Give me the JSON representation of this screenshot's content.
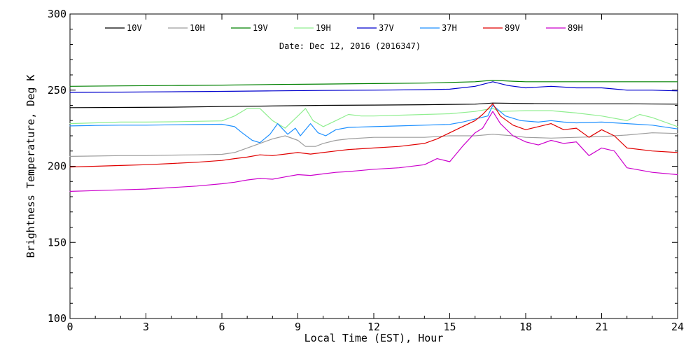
{
  "chart_data": {
    "type": "line",
    "title": "",
    "annotation": "Date: Dec 12, 2016 (2016347)",
    "xlabel": "Local Time (EST), Hour",
    "ylabel": "Brightness Temperature, Deg K",
    "xlim": [
      0,
      24
    ],
    "ylim": [
      100,
      300
    ],
    "xticks": [
      0,
      3,
      6,
      9,
      12,
      15,
      18,
      21,
      24
    ],
    "xtick_labels": [
      "0",
      "3",
      "6",
      "9",
      "12",
      "15",
      "18",
      "21",
      "24"
    ],
    "yticks": [
      100,
      150,
      200,
      250,
      300
    ],
    "ytick_labels": [
      "100",
      "150",
      "200",
      "250",
      "300"
    ],
    "grid": false,
    "legend_position": "top",
    "series": [
      {
        "name": "10V",
        "color": "#000000",
        "x": [
          0,
          2,
          4,
          6,
          8,
          10,
          12,
          14,
          16,
          16.7,
          18,
          20,
          22,
          24
        ],
        "y": [
          238.5,
          238.6,
          238.8,
          239.2,
          239.6,
          240,
          240.2,
          240.4,
          240.8,
          241.5,
          241.2,
          241,
          241,
          240.8
        ]
      },
      {
        "name": "10H",
        "color": "#9e9e9e",
        "x": [
          0,
          1,
          2,
          3,
          4,
          5,
          6,
          6.5,
          7,
          7.5,
          8,
          8.5,
          9,
          9.3,
          9.7,
          10,
          10.5,
          11,
          12,
          13,
          14,
          15,
          16,
          16.7,
          17.5,
          18,
          19,
          20,
          21,
          22,
          23,
          24
        ],
        "y": [
          206.5,
          206.7,
          207,
          207,
          207.3,
          207.5,
          207.8,
          209,
          212,
          215,
          218,
          220,
          217,
          213,
          213,
          215,
          217,
          218,
          219,
          219,
          219,
          220,
          220,
          221,
          220,
          219,
          218.5,
          219,
          219.5,
          220.5,
          222,
          221.5
        ]
      },
      {
        "name": "19V",
        "color": "#008000",
        "x": [
          0,
          2,
          4,
          6,
          8,
          10,
          12,
          14,
          16,
          16.7,
          17.5,
          18,
          20,
          22,
          24
        ],
        "y": [
          252.5,
          252.8,
          253,
          253.3,
          253.7,
          254,
          254.3,
          254.6,
          255.5,
          256.5,
          255.8,
          255.5,
          255.5,
          255.5,
          255.5
        ]
      },
      {
        "name": "19H",
        "color": "#90ee90",
        "x": [
          0,
          1,
          2,
          3,
          4,
          5,
          6,
          6.5,
          7,
          7.5,
          8,
          8.5,
          9,
          9.3,
          9.6,
          10,
          10.5,
          11,
          11.5,
          12,
          13,
          14,
          15,
          16,
          16.7,
          17,
          18,
          19,
          20,
          21,
          22,
          22.5,
          23,
          24
        ],
        "y": [
          228,
          228.5,
          229,
          229,
          229.2,
          229.5,
          229.8,
          233,
          238,
          238,
          230,
          225,
          233,
          238,
          230,
          226,
          230,
          234,
          233,
          233,
          233.5,
          234,
          234.5,
          236,
          238,
          236,
          236.5,
          236.5,
          235,
          233,
          230,
          234,
          232,
          226
        ]
      },
      {
        "name": "37V",
        "color": "#0000cd",
        "x": [
          0,
          2,
          4,
          6,
          8,
          10,
          12,
          14,
          15,
          16,
          16.7,
          17.3,
          18,
          19,
          20,
          21,
          22,
          23,
          24
        ],
        "y": [
          248.5,
          248.7,
          248.9,
          249.2,
          249.5,
          249.8,
          250,
          250.3,
          250.6,
          252.5,
          255.5,
          253,
          251.5,
          252.5,
          251.5,
          251.5,
          250,
          250,
          249.5
        ]
      },
      {
        "name": "37H",
        "color": "#1e90ff",
        "x": [
          0,
          1,
          2,
          3,
          4,
          5,
          6,
          6.5,
          6.8,
          7.2,
          7.5,
          7.9,
          8.2,
          8.6,
          8.9,
          9.1,
          9.3,
          9.5,
          9.8,
          10.1,
          10.5,
          11,
          12,
          13,
          14,
          15,
          15.5,
          16,
          16.5,
          16.7,
          17.2,
          17.8,
          18.5,
          19,
          19.5,
          20,
          21,
          22,
          23,
          24
        ],
        "y": [
          226.5,
          226.8,
          227,
          227,
          227.2,
          227.4,
          227.6,
          226,
          222,
          217,
          215.5,
          221,
          228,
          221,
          225,
          220,
          224,
          228,
          222,
          220,
          224,
          225.5,
          226,
          226.5,
          227,
          227.5,
          229,
          231,
          233,
          240,
          233,
          230,
          229,
          230,
          229,
          228.5,
          229,
          228,
          227,
          224.5
        ]
      },
      {
        "name": "89V",
        "color": "#e00000",
        "x": [
          0,
          1,
          2,
          3,
          4,
          5,
          6,
          6.5,
          7,
          7.5,
          8,
          8.5,
          9,
          9.5,
          10,
          10.5,
          11,
          12,
          13,
          14,
          14.5,
          15,
          15.5,
          16,
          16.3,
          16.7,
          17,
          17.5,
          18,
          18.5,
          19,
          19.5,
          20,
          20.5,
          21,
          21.5,
          22,
          23,
          24
        ],
        "y": [
          199.5,
          200,
          200.5,
          201,
          201.8,
          202.6,
          203.8,
          205,
          206,
          207.5,
          207,
          208,
          209,
          208,
          209,
          210,
          211,
          212,
          213,
          215,
          218,
          222,
          226,
          230,
          234,
          241,
          233,
          227,
          224,
          226,
          228,
          224,
          225,
          219,
          224,
          220,
          212,
          210,
          209
        ]
      },
      {
        "name": "89H",
        "color": "#cc00cc",
        "x": [
          0,
          1,
          2,
          3,
          4,
          5,
          6,
          6.5,
          7,
          7.5,
          8,
          8.5,
          9,
          9.5,
          10,
          10.5,
          11,
          12,
          13,
          14,
          14.5,
          15,
          15.5,
          16,
          16.3,
          16.7,
          17,
          17.5,
          18,
          18.5,
          19,
          19.5,
          20,
          20.5,
          21,
          21.5,
          22,
          23,
          24
        ],
        "y": [
          183.5,
          184,
          184.5,
          185,
          186,
          187,
          188.5,
          189.5,
          191,
          192,
          191.5,
          193,
          194.5,
          194,
          195,
          196,
          196.5,
          198,
          199,
          201,
          205,
          203,
          213,
          222,
          225,
          236,
          228,
          220,
          216,
          214,
          217,
          215,
          216,
          207,
          212,
          210,
          199,
          196,
          194.5
        ]
      }
    ]
  }
}
